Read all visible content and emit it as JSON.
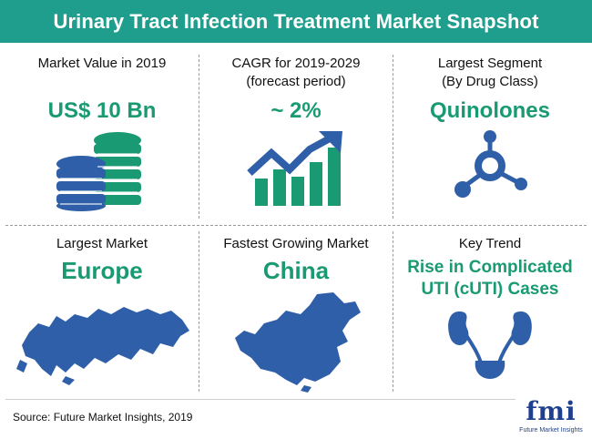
{
  "title": "Urinary Tract Infection Treatment Market Snapshot",
  "cells": [
    {
      "label": "Market Value in 2019",
      "value": "US$ 10 Bn",
      "icon": "coin-stack-icon"
    },
    {
      "label_line1": "CAGR for 2019-2029",
      "label_line2": "(forecast period)",
      "value": "~ 2%",
      "icon": "growth-chart-icon"
    },
    {
      "label_line1": "Largest Segment",
      "label_line2": "(By Drug Class)",
      "value": "Quinolones",
      "icon": "molecule-icon"
    },
    {
      "label": "Largest Market",
      "value": "Europe",
      "icon": "europe-map-icon"
    },
    {
      "label": "Fastest Growing Market",
      "value": "China",
      "icon": "china-map-icon"
    },
    {
      "label": "Key Trend",
      "value_line1": "Rise in Complicated",
      "value_line2": "UTI (cUTI) Cases",
      "icon": "urinary-system-icon"
    }
  ],
  "source": "Source: Future Market Insights, 2019",
  "logo": {
    "text": "fmi",
    "subtext": "Future Market Insights"
  },
  "colors": {
    "header": "#1f9e8e",
    "accent": "#1a9a72",
    "logo": "#1f3f8f"
  }
}
